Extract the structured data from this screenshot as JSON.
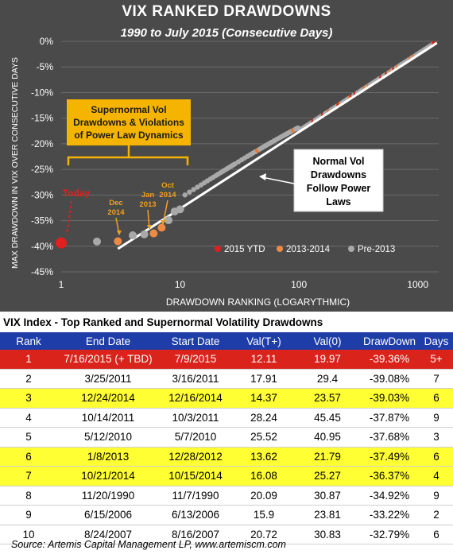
{
  "chart_data": {
    "type": "scatter",
    "title": "VIX RANKED DRAWDOWNS",
    "subtitle": "1990 to July 2015 (Consecutive Days)",
    "xlabel": "DRAWDOWN RANKING (LOGARYTHMIC)",
    "ylabel": "MAX DRAWDOWN IN VIX OVER CONSECUTIVE DAYS",
    "x_scale": "log",
    "xlim": [
      1,
      1500
    ],
    "ylim": [
      -45,
      0
    ],
    "x_ticks": [
      "1",
      "10",
      "100",
      "1000"
    ],
    "y_ticks": [
      "0%",
      "-5%",
      "-10%",
      "-15%",
      "-20%",
      "-25%",
      "-30%",
      "-35%",
      "-40%",
      "-45%"
    ],
    "grid": "horizontal",
    "legend": [
      "2015 YTD",
      "2013-2014",
      "Pre-2013"
    ],
    "legend_position": "bottom-right",
    "series": [
      {
        "name": "2015 YTD",
        "color": "#e02020",
        "points": [
          [
            1,
            -39.36
          ]
        ]
      },
      {
        "name": "2013-2014",
        "color": "#ee8a44",
        "points": [
          [
            3,
            -39.03
          ],
          [
            6,
            -37.49
          ],
          [
            7,
            -36.37
          ]
        ]
      },
      {
        "name": "Pre-2013",
        "color": "#a9a9a9",
        "points": [
          [
            2,
            -39.08
          ],
          [
            4,
            -37.87
          ],
          [
            5,
            -37.68
          ],
          [
            8,
            -34.92
          ],
          [
            9,
            -33.22
          ],
          [
            10,
            -32.79
          ]
        ]
      }
    ],
    "power_law_fit": {
      "from": [
        3,
        -40.5
      ],
      "to": [
        1450,
        -0.3
      ]
    },
    "annotations": {
      "today": "Today",
      "dec2014": [
        "Dec",
        "2014"
      ],
      "jan2013": [
        "Jan",
        "2013"
      ],
      "oct2014": [
        "Oct",
        "2014"
      ],
      "supernormal_box": [
        "Supernormal Vol",
        "Drawdowns & Violations",
        "of Power Law Dynamics"
      ],
      "normal_box": [
        "Normal Vol",
        "Drawdowns",
        "Follow Power",
        "Laws"
      ]
    },
    "table": {
      "title": "VIX Index - Top Ranked and Supernormal Volatility Drawdowns",
      "headers": [
        "Rank",
        "End Date",
        "Start Date",
        "Val(T+)",
        "Val(0)",
        "DrawDown",
        "Days"
      ],
      "rows": [
        [
          "1",
          "7/16/2015 (+ TBD)",
          "7/9/2015",
          "12.11",
          "19.97",
          "-39.36%",
          "5+"
        ],
        [
          "2",
          "3/25/2011",
          "3/16/2011",
          "17.91",
          "29.4",
          "-39.08%",
          "7"
        ],
        [
          "3",
          "12/24/2014",
          "12/16/2014",
          "14.37",
          "23.57",
          "-39.03%",
          "6"
        ],
        [
          "4",
          "10/14/2011",
          "10/3/2011",
          "28.24",
          "45.45",
          "-37.87%",
          "9"
        ],
        [
          "5",
          "5/12/2010",
          "5/7/2010",
          "25.52",
          "40.95",
          "-37.68%",
          "3"
        ],
        [
          "6",
          "1/8/2013",
          "12/28/2012",
          "13.62",
          "21.79",
          "-37.49%",
          "6"
        ],
        [
          "7",
          "10/21/2014",
          "10/15/2014",
          "16.08",
          "25.27",
          "-36.37%",
          "4"
        ],
        [
          "8",
          "11/20/1990",
          "11/7/1990",
          "20.09",
          "30.87",
          "-34.92%",
          "9"
        ],
        [
          "9",
          "6/15/2006",
          "6/13/2006",
          "15.9",
          "23.81",
          "-33.22%",
          "2"
        ],
        [
          "10",
          "8/24/2007",
          "8/16/2007",
          "20.72",
          "30.83",
          "-32.79%",
          "6"
        ]
      ],
      "row_highlight": [
        "red",
        "",
        "yellow",
        "",
        "",
        "yellow",
        "yellow",
        "",
        "",
        ""
      ]
    }
  },
  "source": "Source: Artemis Capital Management LP, www.artemiscm.com"
}
